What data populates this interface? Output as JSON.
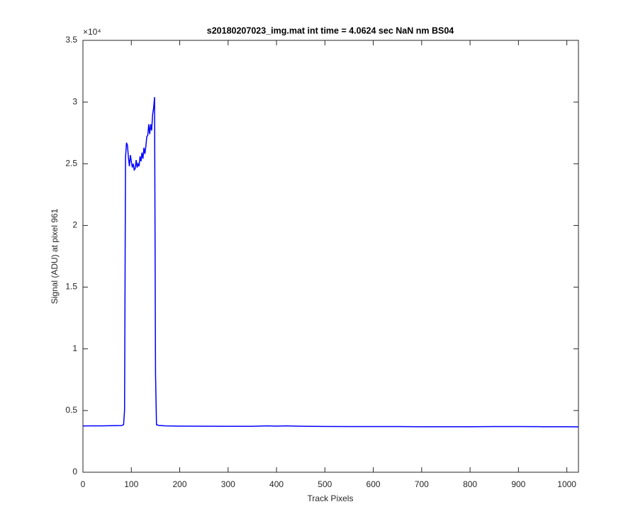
{
  "chart_data": {
    "type": "line",
    "title": "s20180207023_img.mat int time = 4.0624 sec  NaN nm BS04",
    "x_label": "Track Pixels",
    "y_label": "Signal (ADU) at pixel 961",
    "y_scale_label": "×10⁴",
    "xlim": [
      0,
      1024
    ],
    "xticks": [
      0,
      100,
      200,
      300,
      400,
      500,
      600,
      700,
      800,
      900,
      1000
    ],
    "ylim": [
      0,
      35000
    ],
    "yticks": [
      0,
      {
        "value": 5000,
        "label": "0.5"
      },
      {
        "value": 10000,
        "label": "1"
      },
      {
        "value": 15000,
        "label": "1.5"
      },
      {
        "value": 20000,
        "label": "2"
      },
      {
        "value": 25000,
        "label": "2.5"
      },
      {
        "value": 30000,
        "label": "3"
      },
      {
        "value": 35000,
        "label": "3.5"
      }
    ],
    "grid": false,
    "x": [
      0,
      20,
      40,
      60,
      80,
      84,
      86,
      88,
      90,
      92,
      94,
      96,
      98,
      100,
      102,
      104,
      106,
      108,
      110,
      112,
      114,
      116,
      118,
      120,
      122,
      124,
      126,
      128,
      130,
      132,
      134,
      136,
      138,
      140,
      142,
      144,
      146,
      148,
      150,
      152,
      156,
      170,
      200,
      250,
      300,
      350,
      380,
      400,
      420,
      440,
      460,
      500,
      550,
      600,
      650,
      700,
      750,
      800,
      850,
      900,
      950,
      1000,
      1024
    ],
    "series": [
      {
        "color": "#0000ff",
        "values": [
          3750,
          3760,
          3760,
          3770,
          3790,
          3850,
          5000,
          25500,
          26700,
          26500,
          25500,
          24800,
          25700,
          25200,
          24700,
          25000,
          24500,
          24600,
          25300,
          24700,
          25000,
          24800,
          25600,
          25200,
          25900,
          25400,
          26300,
          25800,
          26400,
          27200,
          27300,
          28200,
          27400,
          28200,
          27700,
          29000,
          29500,
          30400,
          8000,
          3850,
          3800,
          3760,
          3740,
          3730,
          3720,
          3720,
          3760,
          3740,
          3760,
          3740,
          3720,
          3710,
          3700,
          3700,
          3700,
          3690,
          3690,
          3690,
          3700,
          3700,
          3690,
          3690,
          3680
        ]
      }
    ]
  }
}
